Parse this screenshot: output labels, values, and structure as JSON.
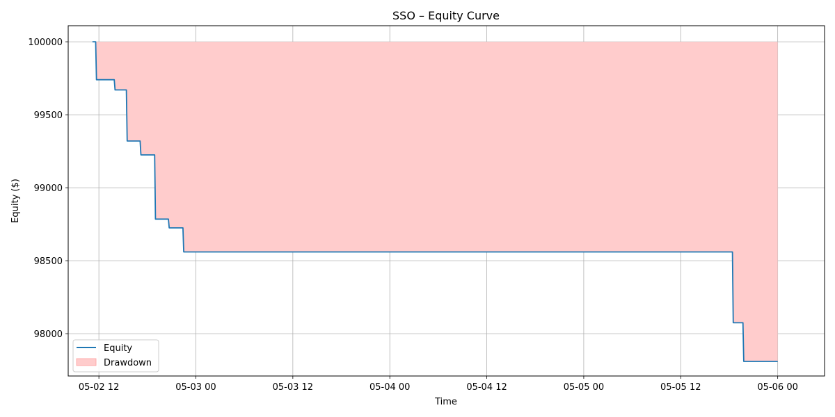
{
  "chart_data": {
    "type": "line",
    "title": "SSO – Equity Curve",
    "xlabel": "Time",
    "ylabel": "Equity ($)",
    "x_ticks": [
      "05-02 12",
      "05-03 00",
      "05-03 12",
      "05-04 00",
      "05-04 12",
      "05-05 00",
      "05-05 12",
      "05-06 00"
    ],
    "x_tick_hours": [
      12,
      24,
      36,
      48,
      60,
      72,
      84,
      96
    ],
    "x_reference": "05-02 00",
    "x_unit": "hours",
    "xlim": [
      8.2,
      101.8
    ],
    "y_ticks": [
      98000,
      98500,
      99000,
      99500,
      100000
    ],
    "ylim": [
      97710,
      100110
    ],
    "grid": true,
    "legend_position": "lower-left",
    "series": [
      {
        "name": "Equity",
        "color": "#1f77b4",
        "hours": [
          11.2,
          11.6,
          11.7,
          13.9,
          14.0,
          15.4,
          15.5,
          17.1,
          17.2,
          18.9,
          19.0,
          20.6,
          20.7,
          22.4,
          22.5,
          90.4,
          90.5,
          91.7,
          91.8,
          96.0
        ],
        "values": [
          100000,
          100000,
          99740,
          99740,
          99670,
          99670,
          99320,
          99320,
          99225,
          99225,
          98785,
          98785,
          98725,
          98725,
          98560,
          98560,
          98075,
          98075,
          97810,
          97810
        ]
      },
      {
        "name": "Drawdown",
        "color": "#ffcccc",
        "type": "area-between",
        "peak": 100000
      }
    ]
  }
}
